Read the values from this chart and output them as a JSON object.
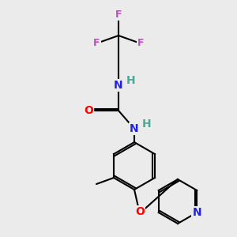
{
  "background_color": "#ebebeb",
  "bond_color": "#000000",
  "bond_width": 1.5,
  "atom_colors": {
    "F": "#cc44cc",
    "N": "#2222dd",
    "O": "#ff0000",
    "C": "#000000",
    "H": "#4aaa99"
  },
  "font_size": 10,
  "font_size_small": 9
}
